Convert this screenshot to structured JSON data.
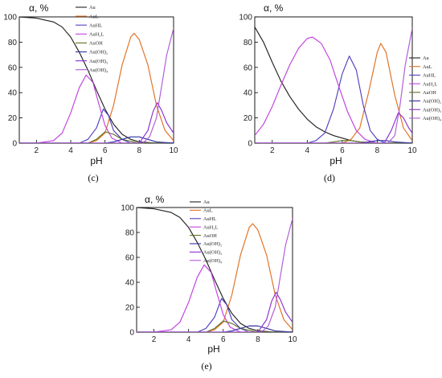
{
  "chart_data": [
    {
      "type": "line",
      "panel_label": "(c)",
      "xlabel": "pH",
      "ylabel": "α, %",
      "xlim": [
        1,
        10
      ],
      "ylim": [
        0,
        100
      ],
      "xticks": [
        2,
        4,
        6,
        8,
        10
      ],
      "yticks": [
        0,
        20,
        40,
        60,
        80,
        100
      ],
      "legend_position": "top-right",
      "series": [
        {
          "name": "Au",
          "color": "#222222",
          "points": [
            [
              1,
              100
            ],
            [
              2,
              99
            ],
            [
              3,
              96
            ],
            [
              3.5,
              92
            ],
            [
              4,
              84
            ],
            [
              4.5,
              72
            ],
            [
              5,
              58
            ],
            [
              5.5,
              42
            ],
            [
              6,
              27
            ],
            [
              6.5,
              15
            ],
            [
              7,
              7
            ],
            [
              7.5,
              3
            ],
            [
              8,
              1
            ],
            [
              9,
              0
            ],
            [
              10,
              0
            ]
          ]
        },
        {
          "name": "AuL",
          "color": "#e07020",
          "points": [
            [
              1,
              0
            ],
            [
              5,
              0
            ],
            [
              5.5,
              2
            ],
            [
              6,
              8
            ],
            [
              6.5,
              30
            ],
            [
              7,
              62
            ],
            [
              7.5,
              84
            ],
            [
              7.7,
              87
            ],
            [
              8,
              82
            ],
            [
              8.5,
              62
            ],
            [
              9,
              30
            ],
            [
              9.5,
              10
            ],
            [
              10,
              2
            ]
          ]
        },
        {
          "name": "AuHL",
          "color": "#5040c0",
          "points": [
            [
              1,
              0
            ],
            [
              4.5,
              0
            ],
            [
              5,
              3
            ],
            [
              5.5,
              12
            ],
            [
              5.9,
              27
            ],
            [
              6.2,
              22
            ],
            [
              6.5,
              10
            ],
            [
              7,
              3
            ],
            [
              7.5,
              0
            ],
            [
              10,
              0
            ]
          ]
        },
        {
          "name": "AuH2L",
          "color": "#c040e0",
          "points": [
            [
              1,
              0
            ],
            [
              2,
              0
            ],
            [
              3,
              2
            ],
            [
              3.5,
              8
            ],
            [
              4,
              24
            ],
            [
              4.5,
              44
            ],
            [
              4.9,
              54
            ],
            [
              5.3,
              48
            ],
            [
              5.6,
              33
            ],
            [
              6,
              14
            ],
            [
              6.4,
              4
            ],
            [
              7,
              0
            ],
            [
              10,
              0
            ]
          ]
        },
        {
          "name": "AuOH",
          "color": "#607020",
          "points": [
            [
              1,
              0
            ],
            [
              5,
              0
            ],
            [
              5.5,
              3
            ],
            [
              6,
              9
            ],
            [
              6.5,
              7
            ],
            [
              7,
              3
            ],
            [
              8,
              0
            ],
            [
              10,
              0
            ]
          ]
        },
        {
          "name": "Au(OH)2",
          "color": "#3030a0",
          "points": [
            [
              1,
              0
            ],
            [
              6,
              0
            ],
            [
              6.5,
              1
            ],
            [
              7,
              3
            ],
            [
              7.5,
              5
            ],
            [
              8,
              5
            ],
            [
              8.5,
              3
            ],
            [
              9,
              1
            ],
            [
              10,
              0
            ]
          ]
        },
        {
          "name": "Au(OH)3",
          "color": "#8a30d0",
          "points": [
            [
              1,
              0
            ],
            [
              8,
              0
            ],
            [
              8.5,
              10
            ],
            [
              8.8,
              25
            ],
            [
              9.05,
              32
            ],
            [
              9.3,
              26
            ],
            [
              9.6,
              16
            ],
            [
              10,
              8
            ]
          ]
        },
        {
          "name": "Au(OH)4",
          "color": "#b05ad8",
          "points": [
            [
              1,
              0
            ],
            [
              8.2,
              0
            ],
            [
              8.6,
              5
            ],
            [
              9,
              20
            ],
            [
              9.3,
              45
            ],
            [
              9.6,
              70
            ],
            [
              10,
              91
            ]
          ]
        }
      ]
    },
    {
      "type": "line",
      "panel_label": "(d)",
      "xlabel": "pH",
      "ylabel": "α, %",
      "xlim": [
        1,
        10
      ],
      "ylim": [
        0,
        100
      ],
      "xticks": [
        2,
        4,
        6,
        8,
        10
      ],
      "yticks": [
        0,
        20,
        40,
        60,
        80,
        100
      ],
      "legend_position": "top-right",
      "series": [
        {
          "name": "Au",
          "color": "#222222",
          "points": [
            [
              1,
              92
            ],
            [
              1.5,
              80
            ],
            [
              2,
              64
            ],
            [
              2.5,
              49
            ],
            [
              3,
              37
            ],
            [
              3.5,
              27
            ],
            [
              4,
              19
            ],
            [
              4.5,
              13
            ],
            [
              5,
              9
            ],
            [
              5.5,
              6
            ],
            [
              6,
              4
            ],
            [
              6.5,
              2
            ],
            [
              7,
              1
            ],
            [
              8,
              0
            ],
            [
              10,
              0
            ]
          ]
        },
        {
          "name": "AuL",
          "color": "#e07020",
          "points": [
            [
              1,
              0
            ],
            [
              6,
              0
            ],
            [
              6.5,
              3
            ],
            [
              7,
              12
            ],
            [
              7.5,
              40
            ],
            [
              8,
              72
            ],
            [
              8.2,
              79
            ],
            [
              8.5,
              72
            ],
            [
              9,
              38
            ],
            [
              9.5,
              12
            ],
            [
              10,
              2
            ]
          ]
        },
        {
          "name": "AuHL",
          "color": "#5040c0",
          "points": [
            [
              1,
              0
            ],
            [
              4,
              0
            ],
            [
              4.5,
              2
            ],
            [
              5,
              8
            ],
            [
              5.5,
              27
            ],
            [
              6,
              55
            ],
            [
              6.4,
              69
            ],
            [
              6.8,
              58
            ],
            [
              7.2,
              30
            ],
            [
              7.6,
              10
            ],
            [
              8,
              3
            ],
            [
              8.5,
              0
            ],
            [
              10,
              0
            ]
          ]
        },
        {
          "name": "AuH2L",
          "color": "#c040e0",
          "points": [
            [
              1,
              6
            ],
            [
              1.5,
              15
            ],
            [
              2,
              29
            ],
            [
              2.5,
              46
            ],
            [
              3,
              62
            ],
            [
              3.5,
              75
            ],
            [
              4,
              83
            ],
            [
              4.3,
              84
            ],
            [
              4.8,
              79
            ],
            [
              5.3,
              66
            ],
            [
              5.8,
              45
            ],
            [
              6.3,
              25
            ],
            [
              6.8,
              10
            ],
            [
              7.3,
              3
            ],
            [
              8,
              0
            ],
            [
              10,
              0
            ]
          ]
        },
        {
          "name": "AuOH",
          "color": "#607020",
          "points": [
            [
              1,
              0
            ],
            [
              5,
              0
            ],
            [
              5.5,
              1
            ],
            [
              6,
              2
            ],
            [
              6.5,
              2
            ],
            [
              7,
              1
            ],
            [
              8,
              0
            ],
            [
              10,
              0
            ]
          ]
        },
        {
          "name": "Au(OH)2",
          "color": "#3030a0",
          "points": [
            [
              1,
              0
            ],
            [
              7,
              0
            ],
            [
              7.5,
              1
            ],
            [
              8,
              2
            ],
            [
              8.5,
              2
            ],
            [
              9,
              1
            ],
            [
              10,
              0
            ]
          ]
        },
        {
          "name": "Au(OH)3",
          "color": "#8a30d0",
          "points": [
            [
              1,
              0
            ],
            [
              8.4,
              0
            ],
            [
              8.8,
              10
            ],
            [
              9.2,
              24
            ],
            [
              9.5,
              20
            ],
            [
              9.8,
              12
            ],
            [
              10,
              8
            ]
          ]
        },
        {
          "name": "Au(OH)4",
          "color": "#b05ad8",
          "points": [
            [
              1,
              0
            ],
            [
              8.6,
              0
            ],
            [
              9,
              6
            ],
            [
              9.3,
              30
            ],
            [
              9.6,
              62
            ],
            [
              10,
              91
            ]
          ]
        }
      ]
    },
    {
      "type": "line",
      "panel_label": "(e)",
      "xlabel": "pH",
      "ylabel": "α, %",
      "xlim": [
        1,
        10
      ],
      "ylim": [
        0,
        100
      ],
      "xticks": [
        2,
        4,
        6,
        8,
        10
      ],
      "yticks": [
        0,
        20,
        40,
        60,
        80,
        100
      ],
      "legend_position": "top-right",
      "series": [
        {
          "name": "Au",
          "color": "#222222",
          "points": [
            [
              1,
              100
            ],
            [
              2,
              99
            ],
            [
              3,
              96
            ],
            [
              3.5,
              92
            ],
            [
              4,
              84
            ],
            [
              4.5,
              72
            ],
            [
              5,
              58
            ],
            [
              5.5,
              42
            ],
            [
              6,
              27
            ],
            [
              6.5,
              15
            ],
            [
              7,
              7
            ],
            [
              7.5,
              3
            ],
            [
              8,
              1
            ],
            [
              9,
              0
            ],
            [
              10,
              0
            ]
          ]
        },
        {
          "name": "AuL",
          "color": "#e07020",
          "points": [
            [
              1,
              0
            ],
            [
              5,
              0
            ],
            [
              5.5,
              2
            ],
            [
              6,
              8
            ],
            [
              6.5,
              30
            ],
            [
              7,
              62
            ],
            [
              7.5,
              84
            ],
            [
              7.7,
              87
            ],
            [
              8,
              82
            ],
            [
              8.5,
              62
            ],
            [
              9,
              30
            ],
            [
              9.5,
              10
            ],
            [
              10,
              2
            ]
          ]
        },
        {
          "name": "AuHL",
          "color": "#5040c0",
          "points": [
            [
              1,
              0
            ],
            [
              4.5,
              0
            ],
            [
              5,
              3
            ],
            [
              5.5,
              12
            ],
            [
              5.9,
              27
            ],
            [
              6.2,
              22
            ],
            [
              6.5,
              10
            ],
            [
              7,
              3
            ],
            [
              7.5,
              0
            ],
            [
              10,
              0
            ]
          ]
        },
        {
          "name": "AuH2L",
          "color": "#c040e0",
          "points": [
            [
              1,
              0
            ],
            [
              2,
              0
            ],
            [
              3,
              2
            ],
            [
              3.5,
              8
            ],
            [
              4,
              24
            ],
            [
              4.5,
              44
            ],
            [
              4.9,
              54
            ],
            [
              5.3,
              48
            ],
            [
              5.6,
              33
            ],
            [
              6,
              14
            ],
            [
              6.4,
              4
            ],
            [
              7,
              0
            ],
            [
              10,
              0
            ]
          ]
        },
        {
          "name": "AuOH",
          "color": "#607020",
          "points": [
            [
              1,
              0
            ],
            [
              5,
              0
            ],
            [
              5.5,
              3
            ],
            [
              6,
              9
            ],
            [
              6.5,
              7
            ],
            [
              7,
              3
            ],
            [
              8,
              0
            ],
            [
              10,
              0
            ]
          ]
        },
        {
          "name": "Au(OH)2",
          "color": "#3030a0",
          "points": [
            [
              1,
              0
            ],
            [
              6,
              0
            ],
            [
              6.5,
              1
            ],
            [
              7,
              3
            ],
            [
              7.5,
              5
            ],
            [
              8,
              5
            ],
            [
              8.5,
              3
            ],
            [
              9,
              1
            ],
            [
              10,
              0
            ]
          ]
        },
        {
          "name": "Au(OH)3",
          "color": "#8a30d0",
          "points": [
            [
              1,
              0
            ],
            [
              8,
              0
            ],
            [
              8.5,
              10
            ],
            [
              8.8,
              25
            ],
            [
              9.05,
              32
            ],
            [
              9.3,
              26
            ],
            [
              9.6,
              16
            ],
            [
              10,
              8
            ]
          ]
        },
        {
          "name": "Au(OH)4",
          "color": "#b05ad8",
          "points": [
            [
              1,
              0
            ],
            [
              8.2,
              0
            ],
            [
              8.6,
              5
            ],
            [
              9,
              20
            ],
            [
              9.3,
              45
            ],
            [
              9.6,
              70
            ],
            [
              10,
              91
            ]
          ]
        }
      ]
    }
  ]
}
